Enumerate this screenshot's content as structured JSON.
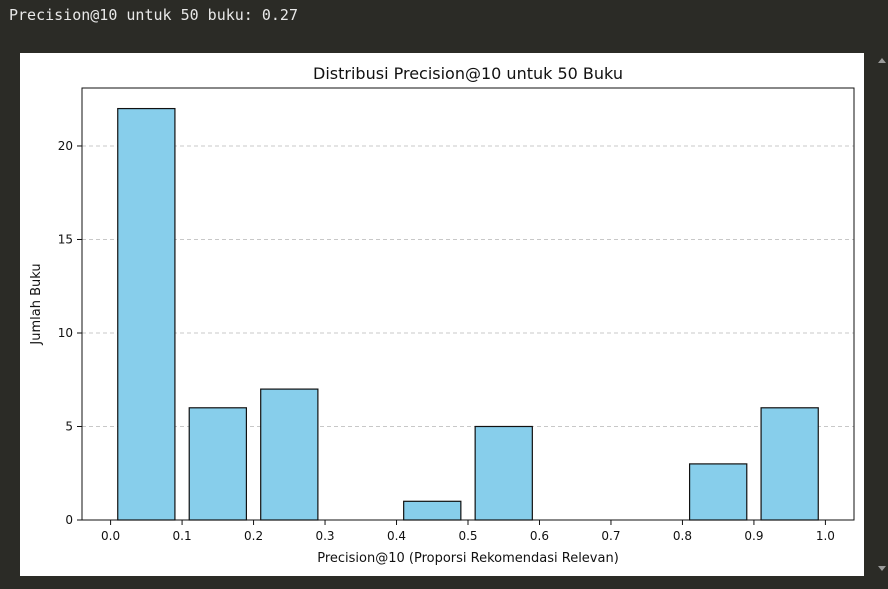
{
  "output": {
    "text": "Precision@10 untuk 50 buku: 0.27"
  },
  "colors": {
    "background": "#2b2b26",
    "bar_fill": "#87ceeb",
    "bar_edge": "#111111",
    "grid": "#c8c8c8"
  },
  "chart_data": {
    "type": "bar",
    "title": "Distribusi Precision@10 untuk 50 Buku",
    "xlabel": "Precision@10 (Proporsi Rekomendasi Relevan)",
    "ylabel": "Jumlah Buku",
    "bins": [
      {
        "start": 0.0,
        "end": 0.1,
        "count": 22
      },
      {
        "start": 0.1,
        "end": 0.2,
        "count": 6
      },
      {
        "start": 0.2,
        "end": 0.3,
        "count": 7
      },
      {
        "start": 0.3,
        "end": 0.4,
        "count": 0
      },
      {
        "start": 0.4,
        "end": 0.5,
        "count": 1
      },
      {
        "start": 0.5,
        "end": 0.6,
        "count": 5
      },
      {
        "start": 0.6,
        "end": 0.7,
        "count": 0
      },
      {
        "start": 0.7,
        "end": 0.8,
        "count": 0
      },
      {
        "start": 0.8,
        "end": 0.9,
        "count": 3
      },
      {
        "start": 0.9,
        "end": 1.0,
        "count": 6
      }
    ],
    "xticks": [
      "0.0",
      "0.1",
      "0.2",
      "0.3",
      "0.4",
      "0.5",
      "0.6",
      "0.7",
      "0.8",
      "0.9",
      "1.0"
    ],
    "yticks": [
      "0",
      "5",
      "10",
      "15",
      "20"
    ],
    "xlim": [
      -0.04,
      1.04
    ],
    "ylim": [
      0,
      23.1
    ],
    "grid": "y-dashed",
    "legend": "none"
  }
}
